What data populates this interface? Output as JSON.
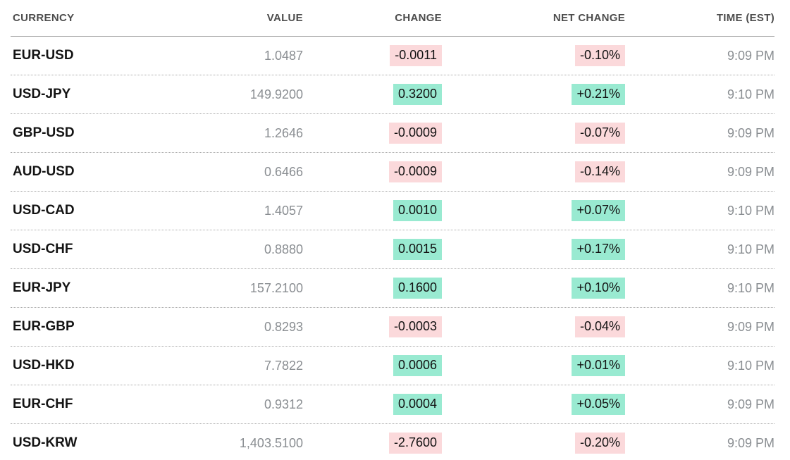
{
  "colors": {
    "positive_bg": "#99ead1",
    "negative_bg": "#fbd9db",
    "header_text": "#4d4d4d",
    "muted_text": "#8a8e92",
    "pair_text": "#141414"
  },
  "table": {
    "columns": [
      {
        "key": "currency",
        "label": "CURRENCY",
        "align": "left"
      },
      {
        "key": "value",
        "label": "VALUE",
        "align": "right"
      },
      {
        "key": "change",
        "label": "CHANGE",
        "align": "right"
      },
      {
        "key": "net_change",
        "label": "NET CHANGE",
        "align": "right"
      },
      {
        "key": "time",
        "label": "TIME (EST)",
        "align": "right"
      }
    ],
    "rows": [
      {
        "currency": "EUR-USD",
        "value": "1.0487",
        "change": "-0.0011",
        "net_change": "-0.10%",
        "time": "9:09 PM",
        "direction": "down"
      },
      {
        "currency": "USD-JPY",
        "value": "149.9200",
        "change": "0.3200",
        "net_change": "+0.21%",
        "time": "9:10 PM",
        "direction": "up"
      },
      {
        "currency": "GBP-USD",
        "value": "1.2646",
        "change": "-0.0009",
        "net_change": "-0.07%",
        "time": "9:09 PM",
        "direction": "down"
      },
      {
        "currency": "AUD-USD",
        "value": "0.6466",
        "change": "-0.0009",
        "net_change": "-0.14%",
        "time": "9:09 PM",
        "direction": "down"
      },
      {
        "currency": "USD-CAD",
        "value": "1.4057",
        "change": "0.0010",
        "net_change": "+0.07%",
        "time": "9:10 PM",
        "direction": "up"
      },
      {
        "currency": "USD-CHF",
        "value": "0.8880",
        "change": "0.0015",
        "net_change": "+0.17%",
        "time": "9:10 PM",
        "direction": "up"
      },
      {
        "currency": "EUR-JPY",
        "value": "157.2100",
        "change": "0.1600",
        "net_change": "+0.10%",
        "time": "9:10 PM",
        "direction": "up"
      },
      {
        "currency": "EUR-GBP",
        "value": "0.8293",
        "change": "-0.0003",
        "net_change": "-0.04%",
        "time": "9:09 PM",
        "direction": "down"
      },
      {
        "currency": "USD-HKD",
        "value": "7.7822",
        "change": "0.0006",
        "net_change": "+0.01%",
        "time": "9:10 PM",
        "direction": "up"
      },
      {
        "currency": "EUR-CHF",
        "value": "0.9312",
        "change": "0.0004",
        "net_change": "+0.05%",
        "time": "9:09 PM",
        "direction": "up"
      },
      {
        "currency": "USD-KRW",
        "value": "1,403.5100",
        "change": "-2.7600",
        "net_change": "-0.20%",
        "time": "9:09 PM",
        "direction": "down"
      }
    ]
  }
}
